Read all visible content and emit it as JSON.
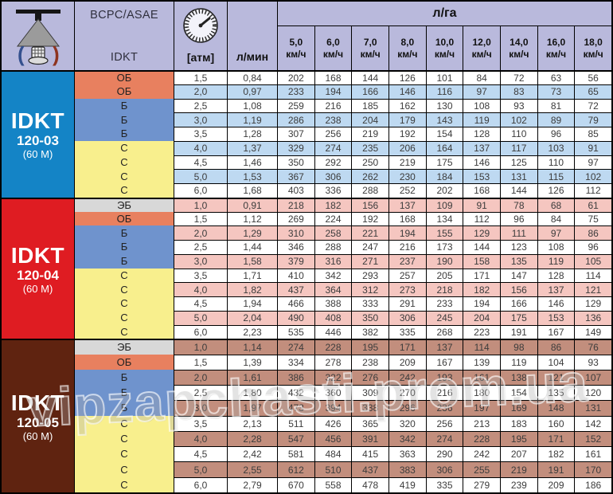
{
  "header": {
    "standard": "BCPC/ASAE",
    "model_label": "IDKT",
    "pressure_label": "[атм]",
    "flow_label": "л/мин",
    "rate_label": "л/га",
    "speed_unit": "км/ч",
    "speeds": [
      "5,0",
      "6,0",
      "7,0",
      "8,0",
      "10,0",
      "12,0",
      "14,0",
      "16,0",
      "18,0"
    ]
  },
  "code_colors": {
    "ЭБ": "#d8d8d8",
    "ОБ": "#e8805f",
    "Б": "#6f93cd",
    "С": "#f8ef8d"
  },
  "colors": {
    "header_bg": "#b9b9dc",
    "border": "#000000",
    "text": "#3c3c3c"
  },
  "watermark": "vipzapchasti.prom.ua",
  "sections": [
    {
      "model": "IDKT",
      "size": "120-03",
      "note": "(60 М)",
      "bg": "#1484c6",
      "stripe": "#bed9f1",
      "rows": [
        {
          "code": "ОБ",
          "atm": "1,5",
          "lmin": "0,84",
          "values": [
            202,
            168,
            144,
            126,
            101,
            84,
            72,
            63,
            56
          ]
        },
        {
          "code": "ОБ",
          "atm": "2,0",
          "lmin": "0,97",
          "values": [
            233,
            194,
            166,
            146,
            116,
            97,
            83,
            73,
            65
          ]
        },
        {
          "code": "Б",
          "atm": "2,5",
          "lmin": "1,08",
          "values": [
            259,
            216,
            185,
            162,
            130,
            108,
            93,
            81,
            72
          ]
        },
        {
          "code": "Б",
          "atm": "3,0",
          "lmin": "1,19",
          "values": [
            286,
            238,
            204,
            179,
            143,
            119,
            102,
            89,
            79
          ]
        },
        {
          "code": "Б",
          "atm": "3,5",
          "lmin": "1,28",
          "values": [
            307,
            256,
            219,
            192,
            154,
            128,
            110,
            96,
            85
          ]
        },
        {
          "code": "С",
          "atm": "4,0",
          "lmin": "1,37",
          "values": [
            329,
            274,
            235,
            206,
            164,
            137,
            117,
            103,
            91
          ]
        },
        {
          "code": "С",
          "atm": "4,5",
          "lmin": "1,46",
          "values": [
            350,
            292,
            250,
            219,
            175,
            146,
            125,
            110,
            97
          ]
        },
        {
          "code": "С",
          "atm": "5,0",
          "lmin": "1,53",
          "values": [
            367,
            306,
            262,
            230,
            184,
            153,
            131,
            115,
            102
          ]
        },
        {
          "code": "С",
          "atm": "6,0",
          "lmin": "1,68",
          "values": [
            403,
            336,
            288,
            252,
            202,
            168,
            144,
            126,
            112
          ]
        }
      ]
    },
    {
      "model": "IDKT",
      "size": "120-04",
      "note": "(60 М)",
      "bg": "#df1c22",
      "stripe": "#f5c6c0",
      "rows": [
        {
          "code": "ЭБ",
          "atm": "1,0",
          "lmin": "0,91",
          "values": [
            218,
            182,
            156,
            137,
            109,
            91,
            78,
            68,
            61
          ]
        },
        {
          "code": "ОБ",
          "atm": "1,5",
          "lmin": "1,12",
          "values": [
            269,
            224,
            192,
            168,
            134,
            112,
            96,
            84,
            75
          ]
        },
        {
          "code": "Б",
          "atm": "2,0",
          "lmin": "1,29",
          "values": [
            310,
            258,
            221,
            194,
            155,
            129,
            111,
            97,
            86
          ]
        },
        {
          "code": "Б",
          "atm": "2,5",
          "lmin": "1,44",
          "values": [
            346,
            288,
            247,
            216,
            173,
            144,
            123,
            108,
            96
          ]
        },
        {
          "code": "Б",
          "atm": "3,0",
          "lmin": "1,58",
          "values": [
            379,
            316,
            271,
            237,
            190,
            158,
            135,
            119,
            105
          ]
        },
        {
          "code": "С",
          "atm": "3,5",
          "lmin": "1,71",
          "values": [
            410,
            342,
            293,
            257,
            205,
            171,
            147,
            128,
            114
          ]
        },
        {
          "code": "С",
          "atm": "4,0",
          "lmin": "1,82",
          "values": [
            437,
            364,
            312,
            273,
            218,
            182,
            156,
            137,
            121
          ]
        },
        {
          "code": "С",
          "atm": "4,5",
          "lmin": "1,94",
          "values": [
            466,
            388,
            333,
            291,
            233,
            194,
            166,
            146,
            129
          ]
        },
        {
          "code": "С",
          "atm": "5,0",
          "lmin": "2,04",
          "values": [
            490,
            408,
            350,
            306,
            245,
            204,
            175,
            153,
            136
          ]
        },
        {
          "code": "С",
          "atm": "6,0",
          "lmin": "2,23",
          "values": [
            535,
            446,
            382,
            335,
            268,
            223,
            191,
            167,
            149
          ]
        }
      ]
    },
    {
      "model": "IDKT",
      "size": "120-05",
      "note": "(60 М)",
      "bg": "#5f2310",
      "stripe": "#c28e7d",
      "rows": [
        {
          "code": "ЭБ",
          "atm": "1,0",
          "lmin": "1,14",
          "values": [
            274,
            228,
            195,
            171,
            137,
            114,
            98,
            86,
            76
          ]
        },
        {
          "code": "ОБ",
          "atm": "1,5",
          "lmin": "1,39",
          "values": [
            334,
            278,
            238,
            209,
            167,
            139,
            119,
            104,
            93
          ]
        },
        {
          "code": "Б",
          "atm": "2,0",
          "lmin": "1,61",
          "values": [
            386,
            322,
            276,
            242,
            193,
            161,
            138,
            121,
            107
          ]
        },
        {
          "code": "Б",
          "atm": "2,5",
          "lmin": "1,80",
          "values": [
            432,
            360,
            309,
            270,
            216,
            180,
            154,
            135,
            120
          ]
        },
        {
          "code": "Б",
          "atm": "3,0",
          "lmin": "1,97",
          "values": [
            473,
            394,
            338,
            296,
            236,
            197,
            169,
            148,
            131
          ]
        },
        {
          "code": "С",
          "atm": "3,5",
          "lmin": "2,13",
          "values": [
            511,
            426,
            365,
            320,
            256,
            213,
            183,
            160,
            142
          ]
        },
        {
          "code": "С",
          "atm": "4,0",
          "lmin": "2,28",
          "values": [
            547,
            456,
            391,
            342,
            274,
            228,
            195,
            171,
            152
          ]
        },
        {
          "code": "С",
          "atm": "4,5",
          "lmin": "2,42",
          "values": [
            581,
            484,
            415,
            363,
            290,
            242,
            207,
            182,
            161
          ]
        },
        {
          "code": "С",
          "atm": "5,0",
          "lmin": "2,55",
          "values": [
            612,
            510,
            437,
            383,
            306,
            255,
            219,
            191,
            170
          ]
        },
        {
          "code": "С",
          "atm": "6,0",
          "lmin": "2,79",
          "values": [
            670,
            558,
            478,
            419,
            335,
            279,
            239,
            209,
            186
          ]
        }
      ]
    }
  ]
}
